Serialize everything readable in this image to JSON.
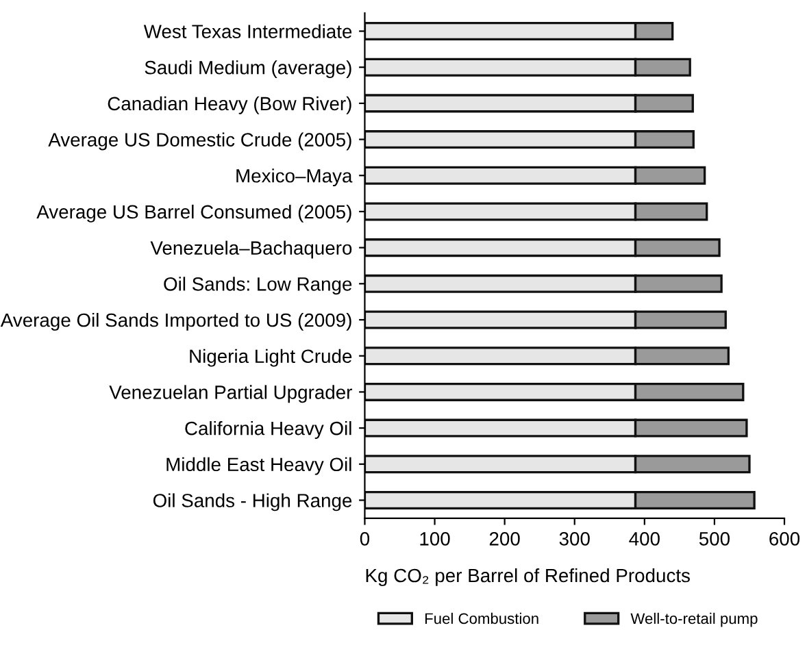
{
  "chart_data": {
    "type": "bar",
    "orientation": "horizontal",
    "stacked": true,
    "categories": [
      "West Texas Intermediate",
      "Saudi Medium (average)",
      "Canadian Heavy (Bow River)",
      "Average US Domestic Crude (2005)",
      "Mexico–Maya",
      "Average US Barrel Consumed (2005)",
      "Venezuela–Bachaquero",
      "Oil Sands: Low Range",
      "Average Oil Sands Imported to US (2009)",
      "Nigeria Light Crude",
      "Venezuelan Partial Upgrader",
      "California Heavy Oil",
      "Middle East Heavy Oil",
      "Oil Sands - High Range"
    ],
    "series": [
      {
        "name": "Fuel Combustion",
        "color": "#e6e6e6",
        "values": [
          387,
          387,
          387,
          387,
          387,
          387,
          387,
          387,
          387,
          387,
          387,
          387,
          387,
          387
        ]
      },
      {
        "name": "Well-to-retail pump",
        "color": "#9a9a9a",
        "values": [
          53,
          78,
          82,
          83,
          99,
          102,
          120,
          123,
          129,
          133,
          154,
          159,
          163,
          170
        ]
      }
    ],
    "xlabel": "Kg CO₂ per Barrel of Refined Products",
    "xlim": [
      0,
      600
    ],
    "xticks": [
      0,
      100,
      200,
      300,
      400,
      500,
      600
    ],
    "grid": false,
    "legend": "bottom"
  }
}
